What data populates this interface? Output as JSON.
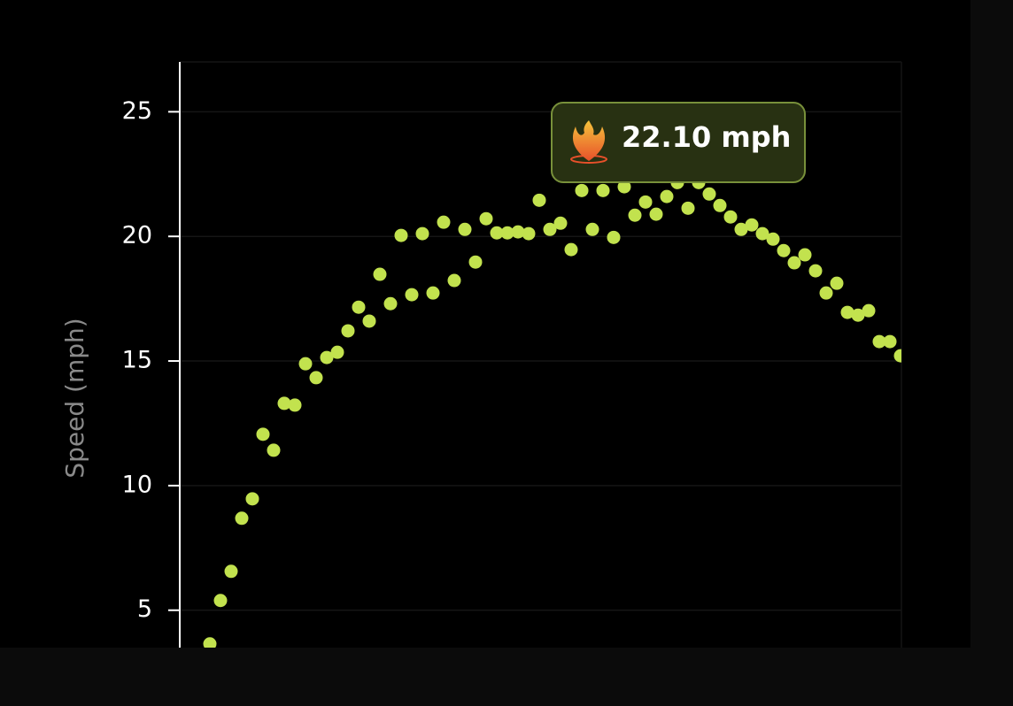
{
  "chart_data": {
    "type": "scatter",
    "y_label": "Speed (mph)",
    "tooltip": "22.10 mph",
    "color": "#c2e24e",
    "ylim": [
      3.5,
      27
    ],
    "yticks": [
      5,
      10,
      15,
      20,
      25
    ],
    "grid": true,
    "values": [
      3.65,
      5.39,
      6.56,
      8.69,
      9.47,
      12.06,
      11.42,
      13.3,
      13.23,
      14.89,
      14.33,
      15.14,
      15.35,
      16.21,
      17.16,
      16.6,
      18.48,
      17.3,
      20.04,
      17.66,
      20.11,
      17.73,
      20.57,
      18.23,
      20.28,
      18.97,
      20.71,
      20.14,
      20.14,
      20.18,
      20.11,
      21.45,
      20.28,
      20.53,
      19.47,
      21.84,
      20.28,
      21.84,
      19.96,
      21.99,
      20.85,
      21.38,
      20.89,
      21.6,
      22.16,
      21.13,
      22.16,
      21.7,
      21.24,
      20.78,
      20.28,
      20.46,
      20.11,
      19.89,
      19.43,
      18.94,
      19.26,
      18.62,
      17.73,
      18.12,
      16.95,
      16.84,
      17.02,
      15.78,
      15.78,
      15.21
    ]
  }
}
